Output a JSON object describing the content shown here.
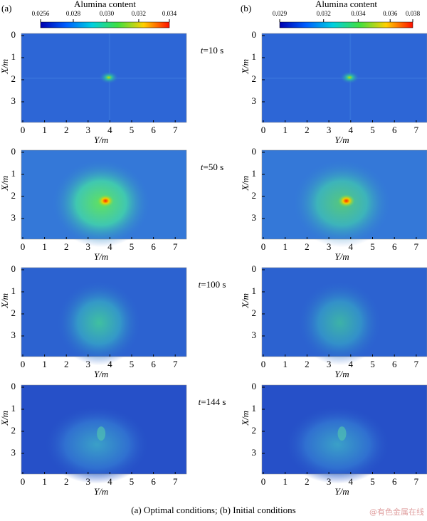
{
  "panels": [
    {
      "label": "(a)",
      "colorbar": {
        "title": "Alumina content",
        "ticks": [
          "0.0256",
          "0.028",
          "0.030",
          "0.032",
          "0.034"
        ]
      }
    },
    {
      "label": "(b)",
      "colorbar": {
        "title": "Alumina content",
        "ticks": [
          "0.029",
          "0.032",
          "0.034",
          "0.036",
          "0.038"
        ]
      }
    }
  ],
  "rows": [
    {
      "time_var": "t",
      "time_value": "=10 s"
    },
    {
      "time_var": "t",
      "time_value": "=50 s"
    },
    {
      "time_var": "t",
      "time_value": "=100 s"
    },
    {
      "time_var": "t",
      "time_value": "=144 s"
    }
  ],
  "axes": {
    "x_label": "X/m",
    "y_label": "Y/m",
    "x_ticks": [
      "0",
      "1",
      "2",
      "3"
    ],
    "y_ticks": [
      "0",
      "1",
      "2",
      "3",
      "4",
      "5",
      "6",
      "7"
    ]
  },
  "caption": "(a)  Optimal conditions;  (b)  Initial conditions",
  "watermark": "@有色金属在线"
}
